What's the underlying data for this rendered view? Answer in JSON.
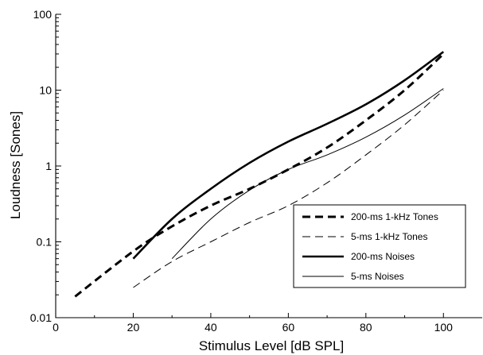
{
  "chart_data": {
    "type": "line",
    "title": "",
    "xlabel": "Stimulus Level [dB SPL]",
    "ylabel": "Loudness [Sones]",
    "xlim": [
      0,
      110
    ],
    "ylim": [
      0.01,
      100
    ],
    "yscale": "log",
    "grid": false,
    "legend_position": "bottom-right",
    "x_ticks": [
      0,
      20,
      40,
      60,
      80,
      100
    ],
    "x_tick_labels": [
      "0",
      "20",
      "40",
      "60",
      "80",
      "100"
    ],
    "y_ticks": [
      0.01,
      0.1,
      1,
      10,
      100
    ],
    "y_tick_labels": [
      "0.01",
      "0.1",
      "1",
      "10",
      "100"
    ],
    "series": [
      {
        "name": "200-ms 1-kHz Tones",
        "style": "thick-dashed",
        "x": [
          5,
          20,
          30,
          40,
          50,
          60,
          70,
          80,
          90,
          100
        ],
        "y": [
          0.019,
          0.075,
          0.16,
          0.3,
          0.5,
          0.9,
          1.75,
          4.0,
          10.0,
          30.0
        ]
      },
      {
        "name": "5-ms 1-kHz Tones",
        "style": "thin-dashed",
        "x": [
          20,
          30,
          40,
          50,
          60,
          70,
          80,
          90,
          100
        ],
        "y": [
          0.025,
          0.055,
          0.1,
          0.18,
          0.3,
          0.6,
          1.4,
          3.5,
          10.0
        ]
      },
      {
        "name": "200-ms Noises",
        "style": "thick-solid",
        "x": [
          20,
          30,
          40,
          50,
          60,
          70,
          80,
          90,
          100
        ],
        "y": [
          0.06,
          0.2,
          0.5,
          1.1,
          2.1,
          3.6,
          6.5,
          13.5,
          32.0
        ]
      },
      {
        "name": "5-ms Noises",
        "style": "thin-solid",
        "x": [
          30,
          40,
          50,
          60,
          70,
          80,
          90,
          100
        ],
        "y": [
          0.06,
          0.2,
          0.48,
          0.9,
          1.4,
          2.4,
          4.7,
          10.5
        ]
      }
    ]
  }
}
